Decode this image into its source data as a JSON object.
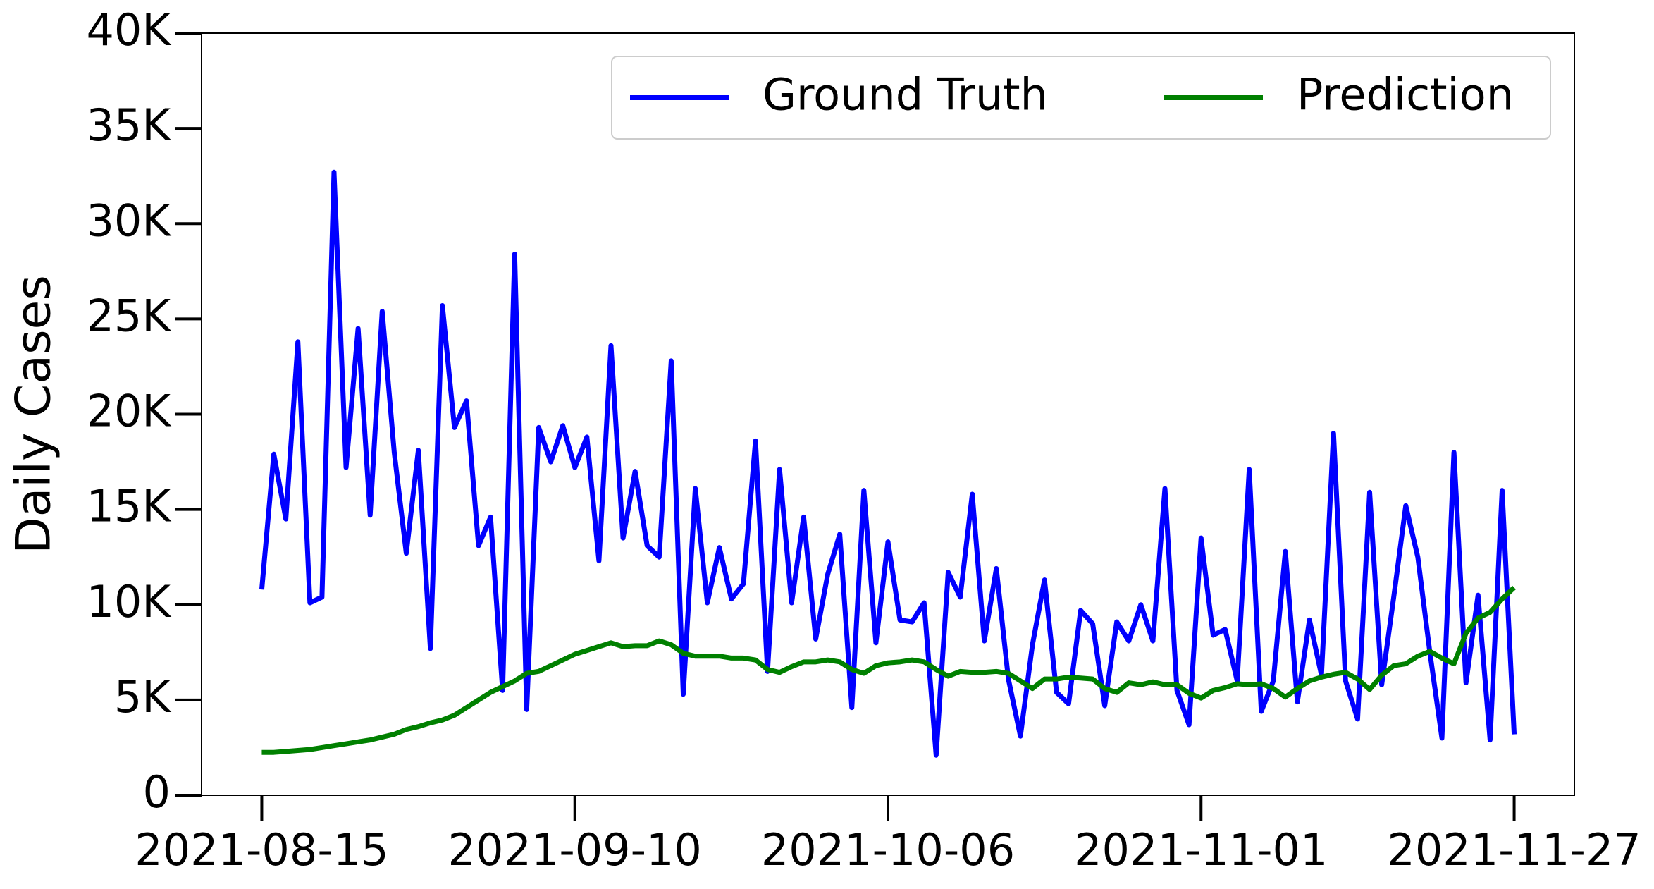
{
  "chart_data": {
    "type": "line",
    "ylabel": "Daily Cases",
    "x": [
      "2021-08-15",
      "2021-08-16",
      "2021-08-17",
      "2021-08-18",
      "2021-08-19",
      "2021-08-20",
      "2021-08-21",
      "2021-08-22",
      "2021-08-23",
      "2021-08-24",
      "2021-08-25",
      "2021-08-26",
      "2021-08-27",
      "2021-08-28",
      "2021-08-29",
      "2021-08-30",
      "2021-08-31",
      "2021-09-01",
      "2021-09-02",
      "2021-09-03",
      "2021-09-04",
      "2021-09-05",
      "2021-09-06",
      "2021-09-07",
      "2021-09-08",
      "2021-09-09",
      "2021-09-10",
      "2021-09-11",
      "2021-09-12",
      "2021-09-13",
      "2021-09-14",
      "2021-09-15",
      "2021-09-16",
      "2021-09-17",
      "2021-09-18",
      "2021-09-19",
      "2021-09-20",
      "2021-09-21",
      "2021-09-22",
      "2021-09-23",
      "2021-09-24",
      "2021-09-25",
      "2021-09-26",
      "2021-09-27",
      "2021-09-28",
      "2021-09-29",
      "2021-09-30",
      "2021-10-01",
      "2021-10-02",
      "2021-10-03",
      "2021-10-04",
      "2021-10-05",
      "2021-10-06",
      "2021-10-07",
      "2021-10-08",
      "2021-10-09",
      "2021-10-10",
      "2021-10-11",
      "2021-10-12",
      "2021-10-13",
      "2021-10-14",
      "2021-10-15",
      "2021-10-16",
      "2021-10-17",
      "2021-10-18",
      "2021-10-19",
      "2021-10-20",
      "2021-10-21",
      "2021-10-22",
      "2021-10-23",
      "2021-10-24",
      "2021-10-25",
      "2021-10-26",
      "2021-10-27",
      "2021-10-28",
      "2021-10-29",
      "2021-10-30",
      "2021-10-31",
      "2021-11-01",
      "2021-11-02",
      "2021-11-03",
      "2021-11-04",
      "2021-11-05",
      "2021-11-06",
      "2021-11-07",
      "2021-11-08",
      "2021-11-09",
      "2021-11-10",
      "2021-11-11",
      "2021-11-12",
      "2021-11-13",
      "2021-11-14",
      "2021-11-15",
      "2021-11-16",
      "2021-11-17",
      "2021-11-18",
      "2021-11-19",
      "2021-11-20",
      "2021-11-21",
      "2021-11-22",
      "2021-11-23",
      "2021-11-24",
      "2021-11-25",
      "2021-11-26",
      "2021-11-27"
    ],
    "series": [
      {
        "name": "Ground Truth",
        "color": "#0000ff",
        "values": [
          10800,
          17900,
          14500,
          23800,
          10100,
          10400,
          32700,
          17200,
          24500,
          14700,
          25400,
          18000,
          12700,
          18100,
          7700,
          25700,
          19300,
          20700,
          13100,
          14600,
          5500,
          28400,
          4500,
          19300,
          17500,
          19400,
          17200,
          18800,
          12300,
          23600,
          13500,
          17000,
          13100,
          12500,
          22800,
          5300,
          16100,
          10100,
          13000,
          10300,
          11100,
          18600,
          6500,
          17100,
          10100,
          14600,
          8200,
          11600,
          13700,
          4600,
          16000,
          8000,
          13300,
          9200,
          9100,
          10100,
          2100,
          11700,
          10400,
          15800,
          8100,
          11900,
          6100,
          3100,
          7900,
          11300,
          5400,
          4800,
          9700,
          9000,
          4700,
          9100,
          8100,
          10000,
          8100,
          16100,
          5500,
          3700,
          13500,
          8400,
          8700,
          6000,
          17100,
          4400,
          6000,
          12800,
          4900,
          9200,
          6300,
          19000,
          6000,
          4000,
          15900,
          5800,
          10400,
          15200,
          12500,
          7500,
          3000,
          18000,
          5900,
          10500,
          2900,
          16000,
          3200
        ]
      },
      {
        "name": "Prediction",
        "color": "#008000",
        "values": [
          2250,
          2250,
          2300,
          2350,
          2400,
          2500,
          2600,
          2700,
          2800,
          2900,
          3050,
          3200,
          3450,
          3600,
          3800,
          3950,
          4200,
          4600,
          5000,
          5400,
          5700,
          6000,
          6400,
          6500,
          6800,
          7100,
          7400,
          7600,
          7800,
          8000,
          7800,
          7850,
          7850,
          8100,
          7900,
          7450,
          7300,
          7300,
          7300,
          7200,
          7200,
          7100,
          6600,
          6450,
          6750,
          7000,
          7000,
          7100,
          7000,
          6600,
          6400,
          6800,
          6950,
          7000,
          7100,
          7000,
          6600,
          6250,
          6500,
          6450,
          6450,
          6500,
          6400,
          6000,
          5600,
          6100,
          6100,
          6200,
          6150,
          6100,
          5600,
          5400,
          5900,
          5800,
          5950,
          5800,
          5800,
          5350,
          5100,
          5500,
          5650,
          5850,
          5800,
          5850,
          5600,
          5150,
          5600,
          6000,
          6200,
          6350,
          6450,
          6100,
          5550,
          6300,
          6800,
          6900,
          7300,
          7550,
          7200,
          6900,
          8500,
          9300,
          9600,
          10300,
          10900
        ]
      }
    ],
    "xlim": [
      "2021-08-10",
      "2021-12-02"
    ],
    "xticks": [
      "2021-08-15",
      "2021-09-10",
      "2021-10-06",
      "2021-11-01",
      "2021-11-27"
    ],
    "ylim": [
      0,
      40000
    ],
    "yticks": [
      0,
      {
        "value": 5000,
        "label": "5K"
      },
      {
        "value": 10000,
        "label": "10K"
      },
      {
        "value": 15000,
        "label": "15K"
      },
      {
        "value": 20000,
        "label": "20K"
      },
      {
        "value": 25000,
        "label": "25K"
      },
      {
        "value": 30000,
        "label": "30K"
      },
      {
        "value": 35000,
        "label": "35K"
      },
      {
        "value": 40000,
        "label": "40K"
      }
    ],
    "grid": false,
    "legend": "upper right"
  }
}
